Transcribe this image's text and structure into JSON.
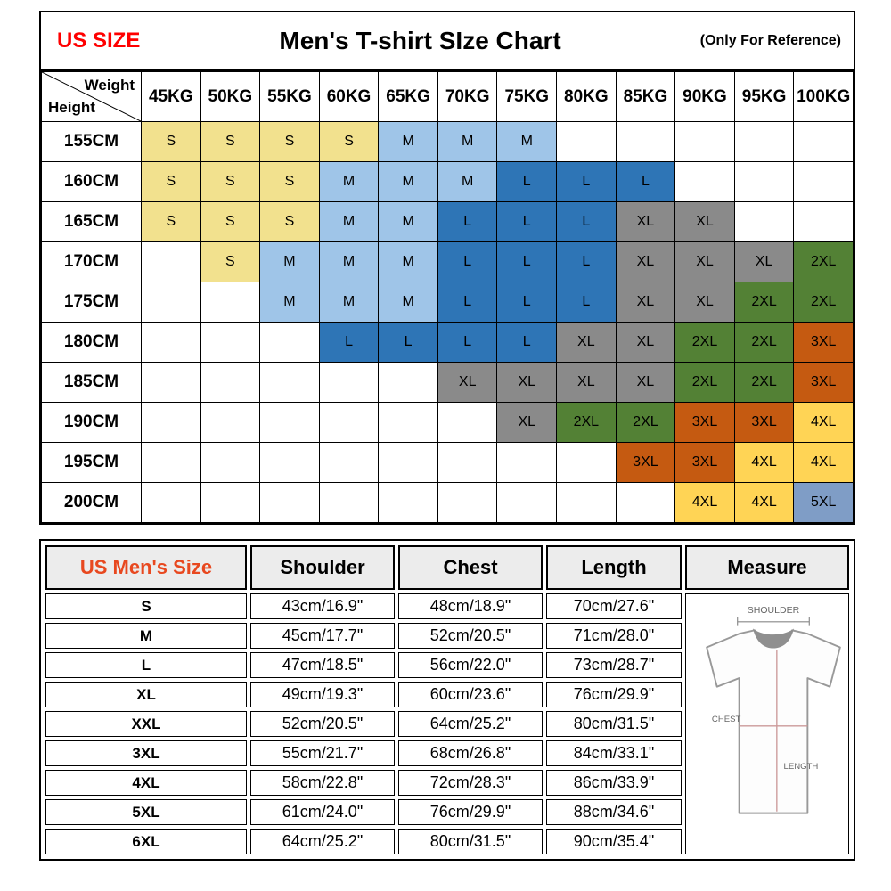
{
  "page": {
    "title_bar": {
      "us_size_label": "US SIZE",
      "title": "Men's T-shirt SIze Chart",
      "reference_note": "(Only For Reference)",
      "accent_color": "#ff0000"
    }
  },
  "chart_data": [
    {
      "type": "heatmap",
      "title": "Men's T-shirt SIze Chart",
      "x_label": "Weight",
      "y_label": "Height",
      "weights": [
        "45KG",
        "50KG",
        "55KG",
        "60KG",
        "65KG",
        "70KG",
        "75KG",
        "80KG",
        "85KG",
        "90KG",
        "95KG",
        "100KG"
      ],
      "heights": [
        "155CM",
        "160CM",
        "165CM",
        "170CM",
        "175CM",
        "180CM",
        "185CM",
        "190CM",
        "195CM",
        "200CM"
      ],
      "cells": [
        [
          "S",
          "S",
          "S",
          "S",
          "M",
          "M",
          "M",
          "",
          "",
          "",
          "",
          ""
        ],
        [
          "S",
          "S",
          "S",
          "M",
          "M",
          "M",
          "L",
          "L",
          "L",
          "",
          "",
          ""
        ],
        [
          "S",
          "S",
          "S",
          "M",
          "M",
          "L",
          "L",
          "L",
          "XL",
          "XL",
          "",
          ""
        ],
        [
          "",
          "S",
          "M",
          "M",
          "M",
          "L",
          "L",
          "L",
          "XL",
          "XL",
          "XL",
          "2XL"
        ],
        [
          "",
          "",
          "M",
          "M",
          "M",
          "L",
          "L",
          "L",
          "XL",
          "XL",
          "2XL",
          "2XL"
        ],
        [
          "",
          "",
          "",
          "L",
          "L",
          "L",
          "L",
          "XL",
          "XL",
          "2XL",
          "2XL",
          "3XL"
        ],
        [
          "",
          "",
          "",
          "",
          "",
          "XL",
          "XL",
          "XL",
          "XL",
          "2XL",
          "2XL",
          "3XL"
        ],
        [
          "",
          "",
          "",
          "",
          "",
          "",
          "XL",
          "2XL",
          "2XL",
          "3XL",
          "3XL",
          "4XL"
        ],
        [
          "",
          "",
          "",
          "",
          "",
          "",
          "",
          "",
          "3XL",
          "3XL",
          "4XL",
          "4XL"
        ],
        [
          "",
          "",
          "",
          "",
          "",
          "",
          "",
          "",
          "",
          "4XL",
          "4XL",
          "5XL"
        ]
      ],
      "size_colors": {
        "S": "#f2e18e",
        "M": "#9fc5e8",
        "L": "#2e75b6",
        "XL": "#8a8a8a",
        "2XL": "#538135",
        "3XL": "#c55a11",
        "4XL": "#ffd455",
        "5XL": "#7f9dc6"
      }
    },
    {
      "type": "table",
      "headers": [
        "US Men's Size",
        "Shoulder",
        "Chest",
        "Length",
        "Measure"
      ],
      "header_accent_color": "#e8481f",
      "rows": [
        [
          "S",
          "43cm/16.9\"",
          "48cm/18.9\"",
          "70cm/27.6\""
        ],
        [
          "M",
          "45cm/17.7\"",
          "52cm/20.5\"",
          "71cm/28.0\""
        ],
        [
          "L",
          "47cm/18.5\"",
          "56cm/22.0\"",
          "73cm/28.7\""
        ],
        [
          "XL",
          "49cm/19.3\"",
          "60cm/23.6\"",
          "76cm/29.9\""
        ],
        [
          "XXL",
          "52cm/20.5\"",
          "64cm/25.2\"",
          "80cm/31.5\""
        ],
        [
          "3XL",
          "55cm/21.7\"",
          "68cm/26.8\"",
          "84cm/33.1\""
        ],
        [
          "4XL",
          "58cm/22.8\"",
          "72cm/28.3\"",
          "86cm/33.9\""
        ],
        [
          "5XL",
          "61cm/24.0\"",
          "76cm/29.9\"",
          "88cm/34.6\""
        ],
        [
          "6XL",
          "64cm/25.2\"",
          "80cm/31.5\"",
          "90cm/35.4\""
        ]
      ],
      "diagram_labels": {
        "shoulder": "SHOULDER",
        "chest": "CHEST",
        "length": "LENGTH"
      }
    }
  ]
}
